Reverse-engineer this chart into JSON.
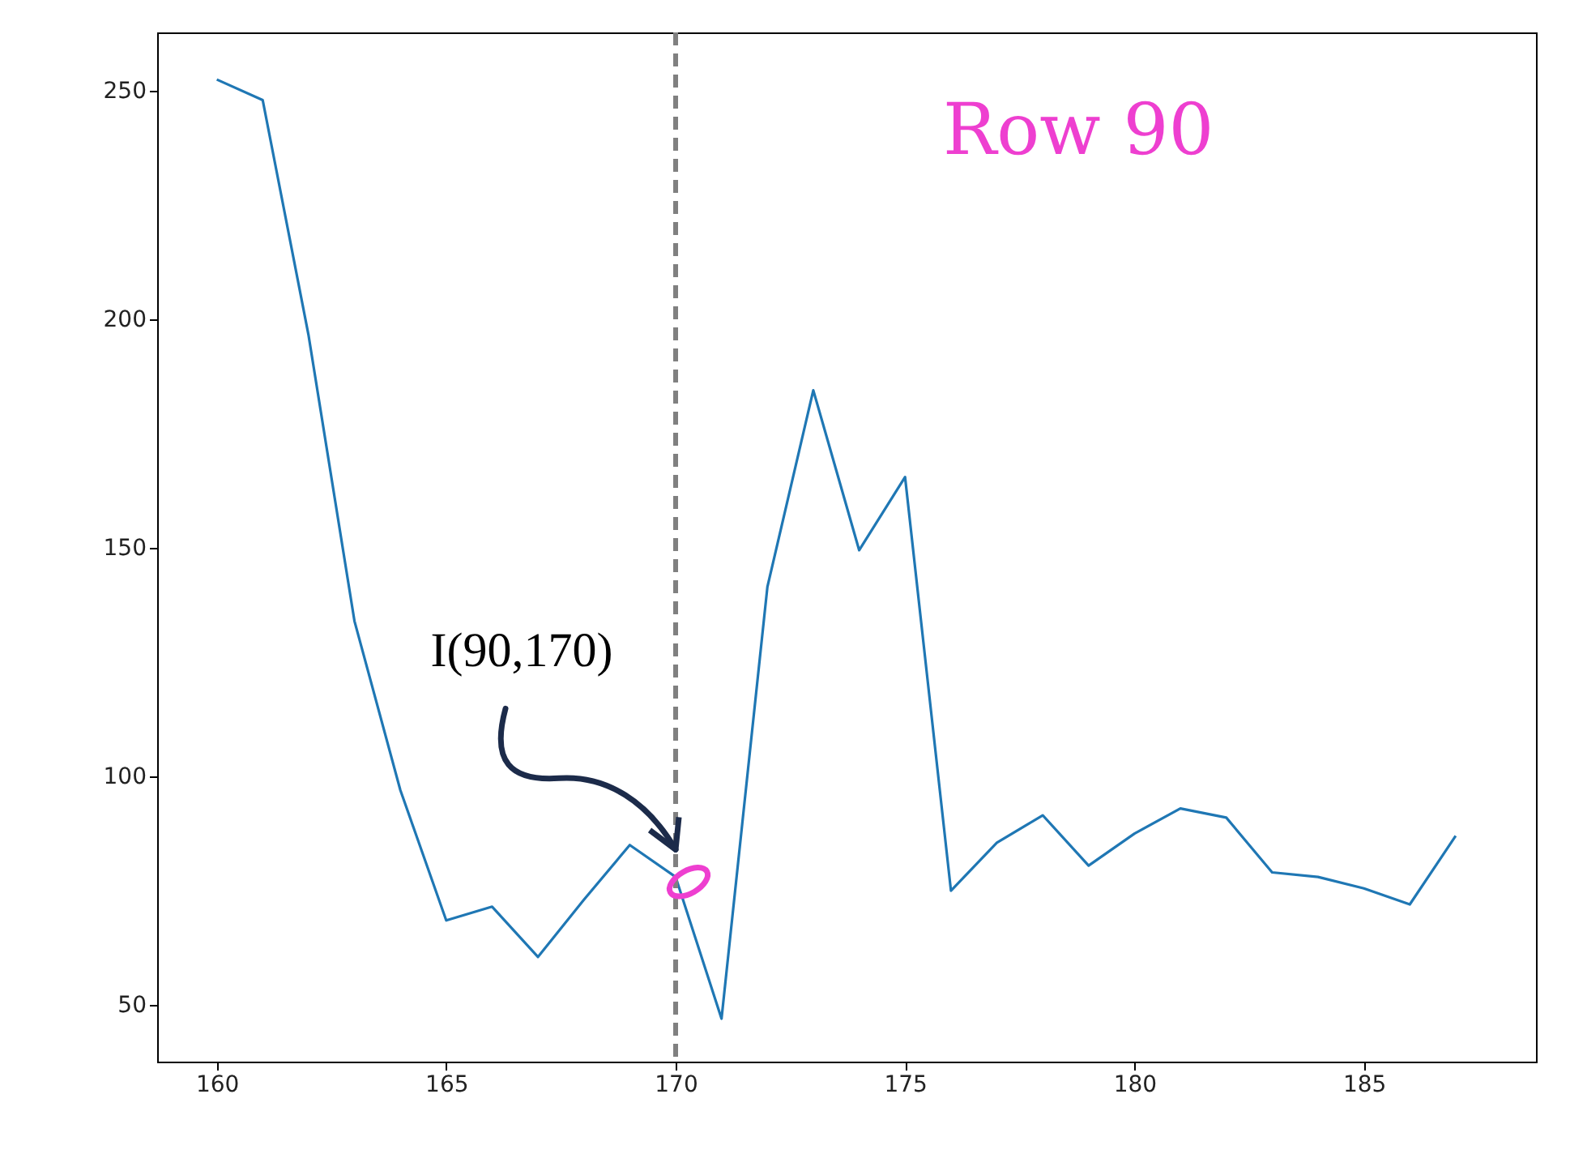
{
  "chart_data": {
    "type": "line",
    "x": [
      160,
      161,
      162,
      163,
      164,
      165,
      166,
      167,
      168,
      169,
      170,
      171,
      172,
      173,
      174,
      175,
      176,
      177,
      178,
      179,
      180,
      181,
      182,
      183,
      184,
      185,
      186,
      187
    ],
    "series": [
      {
        "color": "#1f77b4",
        "values": [
          252.5,
          248,
          196.5,
          134,
          97,
          68.5,
          71.5,
          60.5,
          73,
          85,
          78,
          47,
          141.5,
          184.5,
          149.5,
          165.5,
          75,
          85.5,
          91.5,
          80.5,
          87.5,
          93,
          91,
          79,
          78,
          75.5,
          72,
          87
        ]
      }
    ],
    "xlim": [
      158.7,
      188.75
    ],
    "ylim": [
      37.6,
      262.8
    ],
    "xticks": [
      160,
      165,
      170,
      175,
      180,
      185
    ],
    "yticks": [
      50,
      100,
      150,
      200,
      250
    ],
    "ref_lines": [
      {
        "axis": "x",
        "value": 170,
        "color": "#808080",
        "line_style": "dashed"
      }
    ],
    "annotations": [
      "Row 90",
      {
        "text": "I(90,170)",
        "x": 170,
        "y": 84
      }
    ],
    "grid": false,
    "marker": "none",
    "line_style": "solid"
  }
}
